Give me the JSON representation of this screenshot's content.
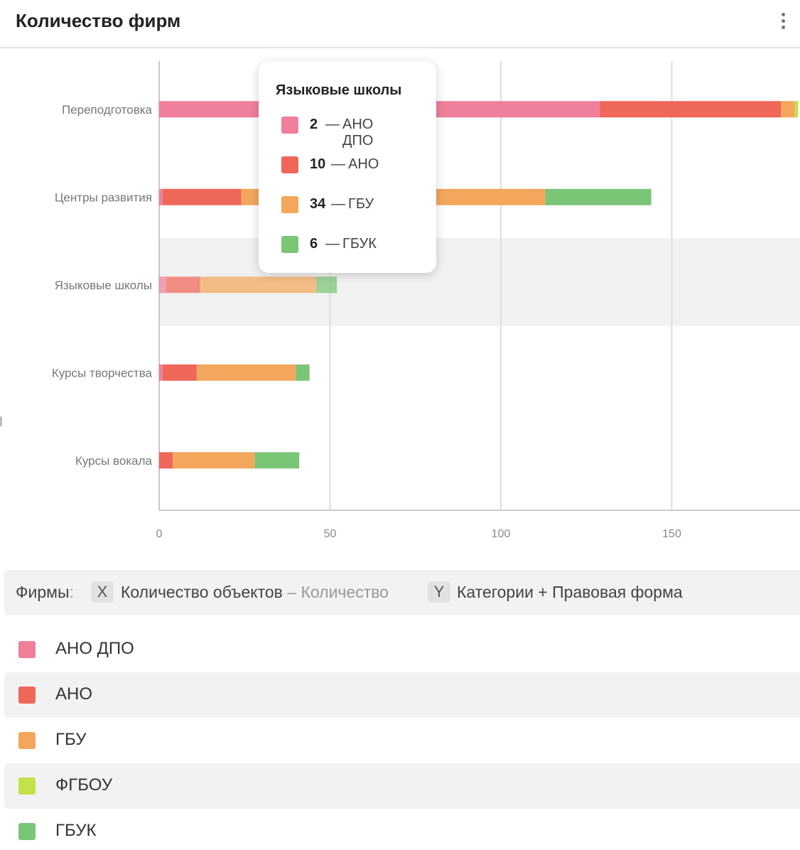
{
  "header": {
    "title": "Количество фирм",
    "menu_icon": "more-vertical-icon"
  },
  "chart_data": {
    "type": "bar",
    "orientation": "horizontal",
    "stacked": true,
    "categories": [
      "Переподготовка",
      "Центры развития",
      "Языковые школы",
      "Курсы творчества",
      "Курсы вокала"
    ],
    "series": [
      {
        "name": "АНО ДПО",
        "color": "#f07f9b",
        "values": [
          129,
          1,
          2,
          1,
          0
        ]
      },
      {
        "name": "АНО",
        "color": "#ef6758",
        "values": [
          53,
          23,
          10,
          10,
          4
        ]
      },
      {
        "name": "ГБУ",
        "color": "#f2a75d",
        "values": [
          4,
          89,
          34,
          29,
          24
        ]
      },
      {
        "name": "ФГБОУ",
        "color": "#c3e24a",
        "values": [
          1,
          0,
          0,
          0,
          0
        ]
      },
      {
        "name": "ГБУК",
        "color": "#7bc576",
        "values": [
          0,
          31,
          6,
          4,
          13
        ]
      }
    ],
    "x_ticks": [
      "0",
      "50",
      "100",
      "150"
    ],
    "xlim": [
      0,
      187
    ],
    "grid": true,
    "highlighted_category": "Языковые школы"
  },
  "tooltip": {
    "title": "Языковые школы",
    "rows": [
      {
        "value": "2",
        "dash": "—",
        "name": "АНО ДПО",
        "color": "#f07f9b"
      },
      {
        "value": "10",
        "dash": "—",
        "name": "АНО",
        "color": "#ef6758"
      },
      {
        "value": "34",
        "dash": "—",
        "name": "ГБУ",
        "color": "#f2a75d"
      },
      {
        "value": "6",
        "dash": "—",
        "name": "ГБУК",
        "color": "#7bc576"
      }
    ]
  },
  "footer": {
    "label": "Фирмы",
    "colon": ":",
    "x_badge": "X",
    "x_field": "Количество объектов",
    "x_agg": "– Количество",
    "y_badge": "Y",
    "y_field": "Категории + Правовая форма"
  },
  "legend": [
    {
      "label": "АНО ДПО",
      "color": "#f07f9b"
    },
    {
      "label": "АНО",
      "color": "#ef6758"
    },
    {
      "label": "ГБУ",
      "color": "#f2a75d"
    },
    {
      "label": "ФГБОУ",
      "color": "#c3e24a"
    },
    {
      "label": "ГБУК",
      "color": "#7bc576"
    }
  ]
}
